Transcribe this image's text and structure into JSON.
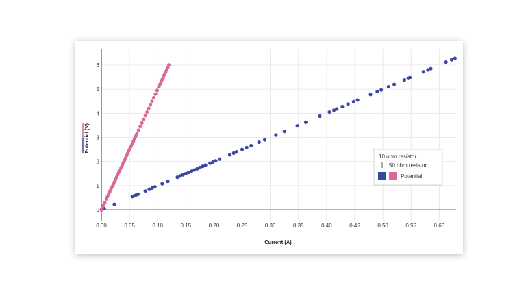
{
  "chart_data": {
    "type": "scatter",
    "xlabel": "Current (A)",
    "ylabel": "Potential (V)",
    "xlim": [
      0,
      0.63
    ],
    "ylim": [
      -0.45,
      6.65
    ],
    "x_ticks": [
      "0.00",
      "0.05",
      "0.10",
      "0.15",
      "0.20",
      "0.25",
      "0.30",
      "0.35",
      "0.40",
      "0.45",
      "0.50",
      "0.55",
      "0.60"
    ],
    "y_ticks": [
      "0",
      "1",
      "2",
      "3",
      "4",
      "5",
      "6"
    ],
    "grid": true,
    "legend": {
      "placement": "right",
      "entries": [
        "10 ohm resistor",
        "50 ohm resistor",
        "Potential"
      ]
    },
    "series": [
      {
        "name": "10 ohm resistor",
        "color": "#3b47a0",
        "x": [
          0.0,
          0.005,
          0.023,
          0.055,
          0.058,
          0.062,
          0.065,
          0.078,
          0.085,
          0.09,
          0.095,
          0.108,
          0.118,
          0.135,
          0.14,
          0.145,
          0.15,
          0.155,
          0.16,
          0.165,
          0.17,
          0.175,
          0.18,
          0.185,
          0.193,
          0.198,
          0.203,
          0.21,
          0.228,
          0.235,
          0.24,
          0.25,
          0.258,
          0.266,
          0.28,
          0.29,
          0.31,
          0.325,
          0.348,
          0.363,
          0.388,
          0.405,
          0.413,
          0.418,
          0.428,
          0.438,
          0.448,
          0.455,
          0.478,
          0.49,
          0.497,
          0.51,
          0.52,
          0.538,
          0.545,
          0.548,
          0.572,
          0.58,
          0.585,
          0.612,
          0.622,
          0.628
        ],
        "y": [
          0.0,
          0.05,
          0.23,
          0.55,
          0.58,
          0.62,
          0.65,
          0.78,
          0.85,
          0.9,
          0.95,
          1.08,
          1.18,
          1.35,
          1.4,
          1.45,
          1.5,
          1.55,
          1.6,
          1.65,
          1.7,
          1.75,
          1.8,
          1.85,
          1.93,
          1.98,
          2.03,
          2.1,
          2.28,
          2.35,
          2.4,
          2.5,
          2.58,
          2.66,
          2.8,
          2.9,
          3.1,
          3.25,
          3.48,
          3.63,
          3.88,
          4.05,
          4.13,
          4.18,
          4.28,
          4.38,
          4.48,
          4.55,
          4.78,
          4.9,
          4.97,
          5.1,
          5.2,
          5.38,
          5.45,
          5.48,
          5.72,
          5.8,
          5.85,
          6.12,
          6.22,
          6.28
        ]
      },
      {
        "name": "50 ohm resistor",
        "color": "#d9689a",
        "x": [
          0.0,
          0.002,
          0.004,
          0.006,
          0.009,
          0.011,
          0.013,
          0.015,
          0.017,
          0.019,
          0.021,
          0.023,
          0.025,
          0.027,
          0.029,
          0.031,
          0.033,
          0.035,
          0.037,
          0.039,
          0.041,
          0.043,
          0.045,
          0.047,
          0.049,
          0.051,
          0.053,
          0.055,
          0.057,
          0.059,
          0.061,
          0.063,
          0.066,
          0.069,
          0.072,
          0.075,
          0.078,
          0.081,
          0.084,
          0.087,
          0.09,
          0.093,
          0.096,
          0.099,
          0.102,
          0.104,
          0.106,
          0.108,
          0.11,
          0.112,
          0.114,
          0.116,
          0.118,
          0.12
        ],
        "y": [
          0.0,
          0.1,
          0.2,
          0.3,
          0.45,
          0.55,
          0.65,
          0.75,
          0.85,
          0.95,
          1.05,
          1.15,
          1.25,
          1.35,
          1.45,
          1.55,
          1.65,
          1.75,
          1.85,
          1.95,
          2.05,
          2.15,
          2.25,
          2.35,
          2.45,
          2.55,
          2.65,
          2.75,
          2.85,
          2.95,
          3.05,
          3.15,
          3.3,
          3.45,
          3.6,
          3.75,
          3.9,
          4.05,
          4.2,
          4.35,
          4.5,
          4.65,
          4.8,
          4.95,
          5.1,
          5.2,
          5.3,
          5.4,
          5.5,
          5.6,
          5.7,
          5.8,
          5.9,
          6.0
        ]
      }
    ]
  }
}
